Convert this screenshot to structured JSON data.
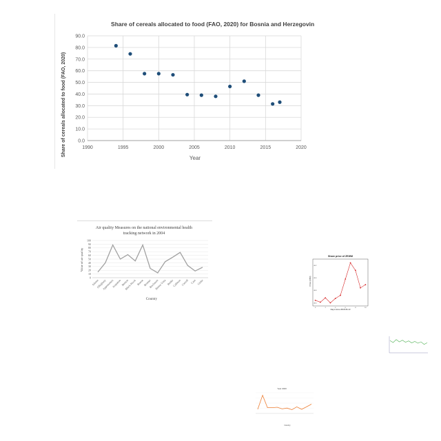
{
  "chart_data": [
    {
      "id": "c1",
      "type": "scatter",
      "title": "Share of cereals allocated to food (FAO, 2020) for Bosnia and Herzegovina",
      "xlabel": "Year",
      "ylabel": "Share of cereals allocated to food (FAO, 2020)",
      "xlim": [
        1990,
        2020
      ],
      "ylim": [
        0,
        90
      ],
      "xticks": [
        "1990",
        "1995",
        "2000",
        "2005",
        "2010",
        "2015",
        "2020"
      ],
      "yticks": [
        "0.0",
        "10.0",
        "20.0",
        "30.0",
        "40.0",
        "50.0",
        "60.0",
        "70.0",
        "80.0",
        "90.0"
      ],
      "grid": true,
      "color": "#1f4e79",
      "points": [
        [
          1994,
          81.5
        ],
        [
          1996,
          74.5
        ],
        [
          1998,
          57.5
        ],
        [
          2000,
          57.5
        ],
        [
          2002,
          56.5
        ],
        [
          2004,
          39.5
        ],
        [
          2006,
          39
        ],
        [
          2008,
          38
        ],
        [
          2010,
          46.5
        ],
        [
          2012,
          51
        ],
        [
          2014,
          39
        ],
        [
          2016,
          31.5
        ],
        [
          2017,
          33
        ]
      ]
    },
    {
      "id": "c2",
      "type": "line",
      "title": "Air quality Measures on the national environmental health tracking network in 2004",
      "xlabel": "Country",
      "ylabel": "Value of air quality",
      "ylim": [
        0,
        100
      ],
      "yticks": [
        "0",
        "10",
        "20",
        "30",
        "40",
        "50",
        "60",
        "70",
        "80",
        "90",
        "100"
      ],
      "grid": true,
      "color": "#a0a0a0",
      "categories": [
        "Adams",
        "Alleghany",
        "Appomattox",
        "Arapahoe",
        "Benton",
        "Black Hawk",
        "Boone",
        "Bremer",
        "Buchanan",
        "Buena Vista",
        "Butler",
        "Calhoun",
        "Carroll",
        "Cass",
        "Cedar"
      ],
      "values": [
        15,
        40,
        88,
        50,
        62,
        45,
        88,
        25,
        13,
        43,
        55,
        68,
        33,
        18,
        28
      ]
    },
    {
      "id": "c3",
      "type": "line",
      "title": "Share price of ZEWM",
      "xlabel": "Days since 2018-06-13",
      "ylabel": "Price (USD)",
      "xlim": [
        -0.5,
        10.5
      ],
      "ylim": [
        48.55,
        49.3
      ],
      "xticks": [
        "0",
        "2",
        "4",
        "6",
        "8",
        "10"
      ],
      "yticks": [
        "48.6",
        "48.8",
        "49.0",
        "49.2"
      ],
      "color": "#d62728",
      "x": [
        0,
        1,
        2,
        3,
        4,
        5,
        6,
        7,
        8,
        9,
        10
      ],
      "values": [
        48.64,
        48.61,
        48.68,
        48.6,
        48.67,
        48.72,
        48.98,
        49.24,
        49.12,
        48.84,
        48.89
      ]
    },
    {
      "id": "c4",
      "type": "line",
      "title": "",
      "xlabel": "",
      "ylabel": "",
      "ylim": [
        0,
        10
      ],
      "color": "#4caf50",
      "values": [
        7.4,
        6.2,
        8.0,
        6.6,
        7.6,
        6.4,
        7.2,
        6.0,
        6.9,
        5.8,
        6.6,
        5.1,
        6.1
      ]
    },
    {
      "id": "c5",
      "type": "line",
      "title": "Year 2020",
      "xlabel": "Country",
      "ylabel": "",
      "ylim": [
        0,
        100
      ],
      "color": "#ed7d31",
      "values": [
        20,
        88,
        28,
        28,
        30,
        22,
        26,
        18,
        32,
        20,
        32,
        45
      ]
    }
  ]
}
